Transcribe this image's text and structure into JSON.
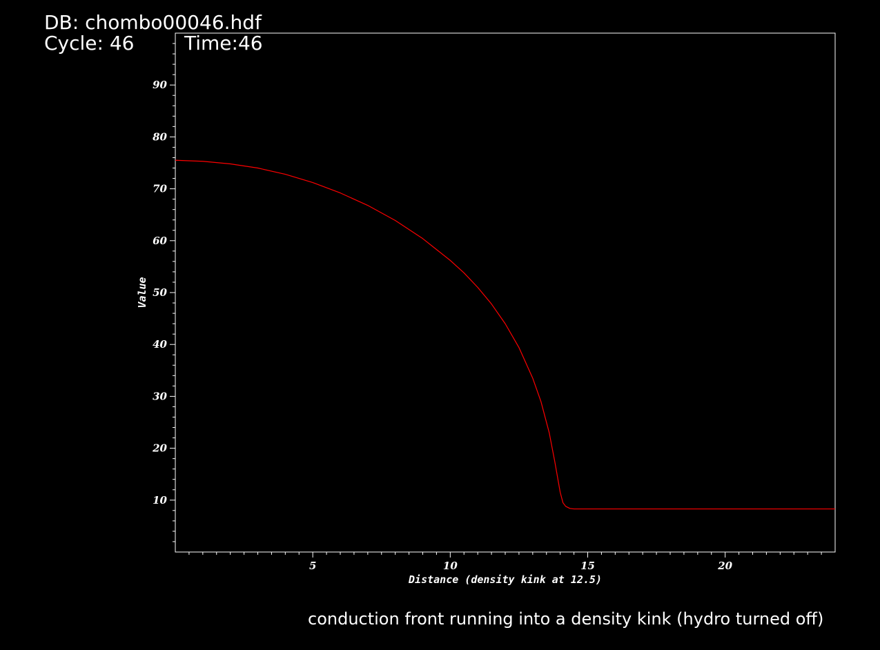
{
  "header": {
    "db_label": "DB: chombo00046.hdf",
    "cycle_label": "Cycle: 46",
    "time_label": "Time:46"
  },
  "caption": "conduction front running into a density kink (hydro turned off)",
  "colors": {
    "background": "#000000",
    "foreground": "#ffffff",
    "curve": "#ff0000"
  },
  "chart_data": {
    "type": "line",
    "title": "",
    "xlabel": "Distance (density kink at 12.5)",
    "ylabel": "Value",
    "xlim": [
      0,
      24
    ],
    "ylim": [
      0,
      100
    ],
    "x_ticks": [
      5,
      10,
      15,
      20
    ],
    "y_ticks": [
      10,
      20,
      30,
      40,
      50,
      60,
      70,
      80,
      90
    ],
    "x_minor_step": 0.5,
    "y_minor_step": 2,
    "grid": false,
    "series": [
      {
        "color": "#ff0000",
        "x": [
          0,
          1,
          2,
          3,
          4,
          5,
          6,
          7,
          8,
          9,
          10,
          10.5,
          11,
          11.5,
          12,
          12.5,
          13,
          13.3,
          13.6,
          13.8,
          14.0,
          14.1,
          14.2,
          14.35,
          14.5,
          15,
          18,
          21,
          24
        ],
        "y": [
          75.5,
          75.3,
          74.8,
          74.0,
          72.8,
          71.2,
          69.2,
          66.8,
          63.9,
          60.4,
          56.2,
          53.8,
          51.0,
          47.8,
          44.0,
          39.4,
          33.5,
          29.0,
          23.0,
          17.5,
          11.5,
          9.5,
          8.8,
          8.4,
          8.3,
          8.3,
          8.3,
          8.3,
          8.3
        ]
      }
    ]
  }
}
